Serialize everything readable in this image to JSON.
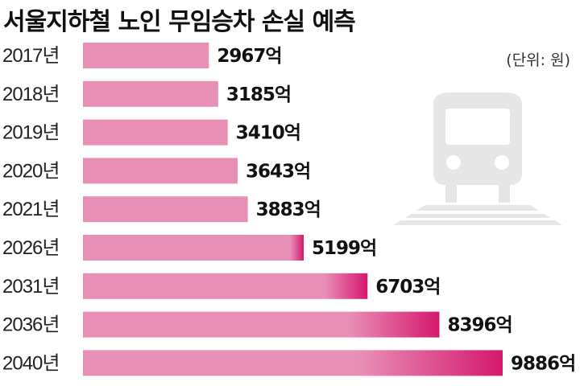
{
  "colors": {
    "bar_light": "#e88fb6",
    "bar_dark": "#d4186e",
    "train": "#e6e6e6"
  },
  "icon": "train-icon",
  "chart_data": {
    "type": "bar",
    "orientation": "horizontal",
    "title": "서울지하철 노인 무임승차 손실 예측",
    "unit_note": "(단위: 원)",
    "categories": [
      "2017년",
      "2018년",
      "2019년",
      "2020년",
      "2021년",
      "2026년",
      "2031년",
      "2036년",
      "2040년"
    ],
    "values": [
      2967,
      3185,
      3410,
      3643,
      3883,
      5199,
      6703,
      8396,
      9886
    ],
    "value_labels": [
      "2967억",
      "3185억",
      "3410억",
      "3643억",
      "3883억",
      "5199억",
      "6703억",
      "8396억",
      "9886억"
    ],
    "xlim": [
      0,
      10000
    ],
    "grid": false,
    "legend": "none"
  }
}
